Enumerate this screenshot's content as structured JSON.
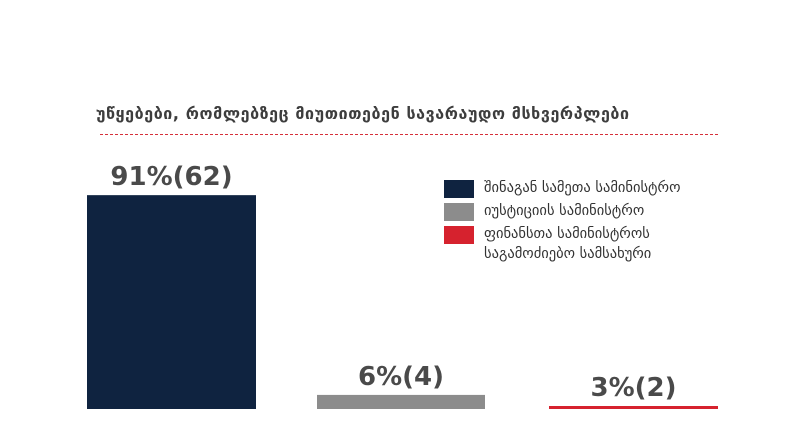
{
  "chart_data": {
    "type": "bar",
    "title": "უწყებები, რომლებზეც მიუთითებენ სავარაუდო მსხვერპლები",
    "categories": [
      "შინაგან სამეთა სამინისტრო",
      "იუსტიციის სამინისტრო",
      "ფინანსთა სამინისტროს საგამოძიებო სამსახური"
    ],
    "values": [
      91,
      6,
      3
    ],
    "data_labels": [
      "91%(62)",
      "6%(4)",
      "3%(2)"
    ],
    "colors": [
      "#0f2340",
      "#8c8c8c",
      "#d6222e"
    ],
    "ylim": [
      0,
      100
    ],
    "legend_position": "right",
    "grid": false
  }
}
